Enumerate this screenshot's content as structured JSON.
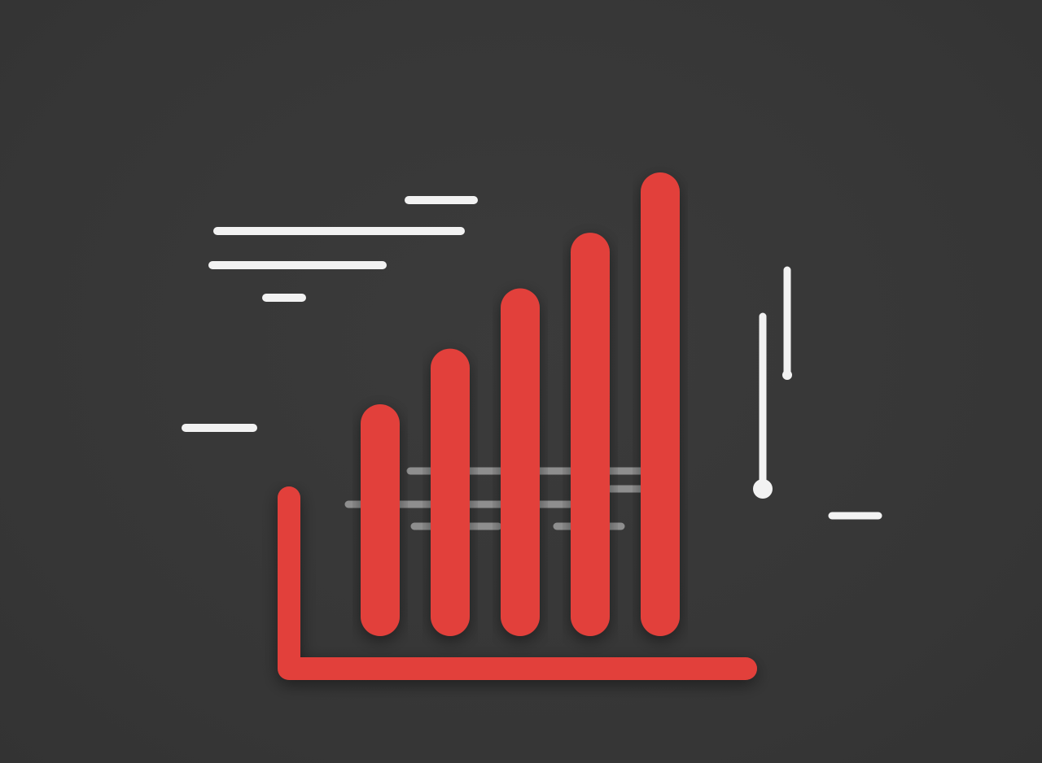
{
  "illustration": {
    "subject": "bar-chart-icon",
    "colors": {
      "background": "#383838",
      "accent": "#E2403A",
      "line": "#F2F2F2",
      "line_dim": "#8A8A8A"
    },
    "bars": [
      {
        "level": 0.5
      },
      {
        "level": 0.62
      },
      {
        "level": 0.75
      },
      {
        "level": 0.87
      },
      {
        "level": 1.0
      }
    ]
  }
}
